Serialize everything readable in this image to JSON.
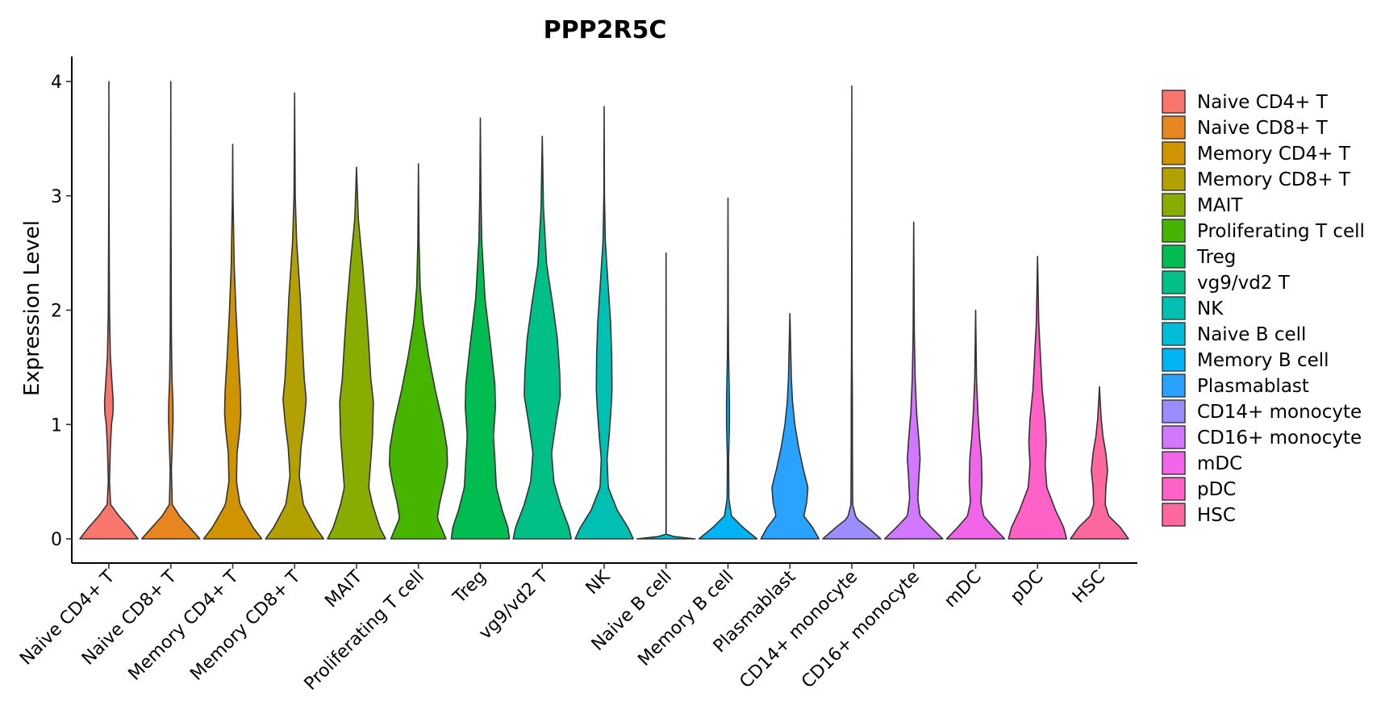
{
  "chart_data": {
    "type": "violin",
    "title": "PPP2R5C",
    "xlabel": "",
    "ylabel": "Expression Level",
    "ylim": [
      -0.2,
      4.2
    ],
    "yticks": [
      0,
      1,
      2,
      3,
      4
    ],
    "grid": false,
    "legend_position": "right",
    "categories": [
      "Naive CD4+ T",
      "Naive CD8+ T",
      "Memory CD4+ T",
      "Memory CD8+ T",
      "MAIT",
      "Proliferating T cell",
      "Treg",
      "vg9/vd2 T",
      "NK",
      "Naive B cell",
      "Memory B cell",
      "Plasmablast",
      "CD14+ monocyte",
      "CD16+ monocyte",
      "mDC",
      "pDC",
      "HSC"
    ],
    "colors": [
      "#F8766D",
      "#E7851E",
      "#D09400",
      "#B2A100",
      "#89AC00",
      "#45B500",
      "#00BC51",
      "#00C087",
      "#00C0B2",
      "#00BCD6",
      "#00B3F2",
      "#29A3FF",
      "#9C8DFF",
      "#D277FF",
      "#F166E8",
      "#FF61C7",
      "#FF689E"
    ],
    "violins": [
      {
        "name": "Naive CD4+ T",
        "max": 4.0,
        "profile": [
          [
            0,
            1.0
          ],
          [
            0.1,
            0.7
          ],
          [
            0.2,
            0.35
          ],
          [
            0.3,
            0.06
          ],
          [
            0.5,
            0.02
          ],
          [
            0.8,
            0.05
          ],
          [
            1.0,
            0.09
          ],
          [
            1.1,
            0.14
          ],
          [
            1.2,
            0.15
          ],
          [
            1.35,
            0.11
          ],
          [
            1.6,
            0.05
          ],
          [
            2.0,
            0.02
          ],
          [
            3.0,
            0.004
          ],
          [
            4.0,
            0.0
          ]
        ]
      },
      {
        "name": "Naive CD8+ T",
        "max": 4.0,
        "profile": [
          [
            0,
            1.0
          ],
          [
            0.1,
            0.65
          ],
          [
            0.2,
            0.3
          ],
          [
            0.3,
            0.05
          ],
          [
            0.6,
            0.02
          ],
          [
            0.9,
            0.06
          ],
          [
            1.05,
            0.08
          ],
          [
            1.2,
            0.07
          ],
          [
            1.4,
            0.04
          ],
          [
            1.8,
            0.02
          ],
          [
            3.0,
            0.005
          ],
          [
            4.0,
            0.0
          ]
        ]
      },
      {
        "name": "Memory CD4+ T",
        "max": 3.45,
        "profile": [
          [
            0,
            1.0
          ],
          [
            0.1,
            0.7
          ],
          [
            0.3,
            0.25
          ],
          [
            0.5,
            0.13
          ],
          [
            0.75,
            0.15
          ],
          [
            0.95,
            0.24
          ],
          [
            1.1,
            0.28
          ],
          [
            1.3,
            0.26
          ],
          [
            1.6,
            0.19
          ],
          [
            2.0,
            0.11
          ],
          [
            2.4,
            0.05
          ],
          [
            3.0,
            0.01
          ],
          [
            3.45,
            0.0
          ]
        ]
      },
      {
        "name": "Memory CD8+ T",
        "max": 3.9,
        "profile": [
          [
            0,
            1.0
          ],
          [
            0.1,
            0.72
          ],
          [
            0.3,
            0.3
          ],
          [
            0.55,
            0.16
          ],
          [
            0.8,
            0.22
          ],
          [
            1.0,
            0.32
          ],
          [
            1.22,
            0.4
          ],
          [
            1.4,
            0.33
          ],
          [
            1.7,
            0.27
          ],
          [
            2.1,
            0.2
          ],
          [
            2.6,
            0.07
          ],
          [
            3.0,
            0.02
          ],
          [
            3.9,
            0.0
          ]
        ]
      },
      {
        "name": "MAIT",
        "max": 3.25,
        "profile": [
          [
            0,
            1.0
          ],
          [
            0.1,
            0.8
          ],
          [
            0.3,
            0.55
          ],
          [
            0.45,
            0.42
          ],
          [
            0.65,
            0.48
          ],
          [
            0.9,
            0.55
          ],
          [
            1.2,
            0.58
          ],
          [
            1.4,
            0.49
          ],
          [
            1.7,
            0.42
          ],
          [
            2.0,
            0.34
          ],
          [
            2.4,
            0.21
          ],
          [
            2.8,
            0.06
          ],
          [
            3.25,
            0.0
          ]
        ]
      },
      {
        "name": "Proliferating T cell",
        "max": 3.28,
        "profile": [
          [
            0,
            0.95
          ],
          [
            0.08,
            0.82
          ],
          [
            0.18,
            0.65
          ],
          [
            0.3,
            0.72
          ],
          [
            0.5,
            0.9
          ],
          [
            0.65,
            1.0
          ],
          [
            0.8,
            0.98
          ],
          [
            1.0,
            0.85
          ],
          [
            1.3,
            0.58
          ],
          [
            1.6,
            0.35
          ],
          [
            1.9,
            0.16
          ],
          [
            2.2,
            0.06
          ],
          [
            2.6,
            0.02
          ],
          [
            3.28,
            0.0
          ]
        ]
      },
      {
        "name": "Treg",
        "max": 3.68,
        "profile": [
          [
            0,
            1.0
          ],
          [
            0.1,
            0.95
          ],
          [
            0.25,
            0.75
          ],
          [
            0.45,
            0.55
          ],
          [
            0.7,
            0.5
          ],
          [
            0.9,
            0.45
          ],
          [
            1.15,
            0.52
          ],
          [
            1.35,
            0.5
          ],
          [
            1.7,
            0.35
          ],
          [
            2.1,
            0.16
          ],
          [
            2.6,
            0.05
          ],
          [
            3.0,
            0.02
          ],
          [
            3.68,
            0.0
          ]
        ]
      },
      {
        "name": "vg9/vd2 T",
        "max": 3.52,
        "profile": [
          [
            0,
            1.0
          ],
          [
            0.1,
            0.92
          ],
          [
            0.3,
            0.62
          ],
          [
            0.5,
            0.4
          ],
          [
            0.75,
            0.32
          ],
          [
            1.0,
            0.46
          ],
          [
            1.25,
            0.62
          ],
          [
            1.45,
            0.6
          ],
          [
            1.75,
            0.52
          ],
          [
            2.05,
            0.36
          ],
          [
            2.4,
            0.15
          ],
          [
            2.9,
            0.04
          ],
          [
            3.52,
            0.0
          ]
        ]
      },
      {
        "name": "NK",
        "max": 3.78,
        "profile": [
          [
            0,
            1.0
          ],
          [
            0.1,
            0.82
          ],
          [
            0.25,
            0.45
          ],
          [
            0.45,
            0.14
          ],
          [
            0.7,
            0.1
          ],
          [
            0.9,
            0.17
          ],
          [
            1.15,
            0.24
          ],
          [
            1.3,
            0.27
          ],
          [
            1.6,
            0.26
          ],
          [
            1.9,
            0.22
          ],
          [
            2.2,
            0.14
          ],
          [
            2.6,
            0.04
          ],
          [
            3.0,
            0.01
          ],
          [
            3.78,
            0.0
          ]
        ]
      },
      {
        "name": "Naive B cell",
        "max": 2.5,
        "profile": [
          [
            0,
            1.0
          ],
          [
            0.012,
            0.8
          ],
          [
            0.025,
            0.0
          ],
          [
            0.03,
            0.004
          ],
          [
            0.5,
            0.004
          ],
          [
            1.5,
            0.003
          ],
          [
            2.5,
            0.0
          ]
        ]
      },
      {
        "name": "Memory B cell",
        "max": 2.98,
        "profile": [
          [
            0,
            1.0
          ],
          [
            0.1,
            0.52
          ],
          [
            0.2,
            0.12
          ],
          [
            0.35,
            0.03
          ],
          [
            0.7,
            0.02
          ],
          [
            1.0,
            0.05
          ],
          [
            1.2,
            0.05
          ],
          [
            1.6,
            0.02
          ],
          [
            2.0,
            0.01
          ],
          [
            2.98,
            0.0
          ]
        ]
      },
      {
        "name": "Plasmablast",
        "max": 1.97,
        "profile": [
          [
            0,
            1.0
          ],
          [
            0.1,
            0.78
          ],
          [
            0.2,
            0.48
          ],
          [
            0.32,
            0.58
          ],
          [
            0.45,
            0.62
          ],
          [
            0.6,
            0.47
          ],
          [
            0.8,
            0.3
          ],
          [
            1.0,
            0.17
          ],
          [
            1.2,
            0.09
          ],
          [
            1.4,
            0.05
          ],
          [
            1.97,
            0.0
          ]
        ]
      },
      {
        "name": "CD14+ monocyte",
        "max": 3.96,
        "profile": [
          [
            0,
            1.0
          ],
          [
            0.1,
            0.55
          ],
          [
            0.18,
            0.15
          ],
          [
            0.3,
            0.03
          ],
          [
            0.8,
            0.02
          ],
          [
            1.2,
            0.02
          ],
          [
            1.6,
            0.01
          ],
          [
            2.5,
            0.005
          ],
          [
            3.96,
            0.0
          ]
        ]
      },
      {
        "name": "CD16+ monocyte",
        "max": 2.77,
        "profile": [
          [
            0,
            1.0
          ],
          [
            0.1,
            0.6
          ],
          [
            0.2,
            0.22
          ],
          [
            0.35,
            0.14
          ],
          [
            0.55,
            0.18
          ],
          [
            0.7,
            0.22
          ],
          [
            0.85,
            0.18
          ],
          [
            1.1,
            0.1
          ],
          [
            1.4,
            0.05
          ],
          [
            1.8,
            0.02
          ],
          [
            2.77,
            0.0
          ]
        ]
      },
      {
        "name": "mDC",
        "max": 2.0,
        "profile": [
          [
            0,
            1.0
          ],
          [
            0.1,
            0.62
          ],
          [
            0.2,
            0.28
          ],
          [
            0.32,
            0.18
          ],
          [
            0.5,
            0.22
          ],
          [
            0.7,
            0.2
          ],
          [
            0.9,
            0.13
          ],
          [
            1.1,
            0.08
          ],
          [
            1.4,
            0.03
          ],
          [
            2.0,
            0.0
          ]
        ]
      },
      {
        "name": "pDC",
        "max": 2.47,
        "profile": [
          [
            0,
            1.0
          ],
          [
            0.1,
            0.9
          ],
          [
            0.25,
            0.62
          ],
          [
            0.45,
            0.32
          ],
          [
            0.65,
            0.26
          ],
          [
            0.85,
            0.3
          ],
          [
            1.05,
            0.26
          ],
          [
            1.3,
            0.16
          ],
          [
            1.6,
            0.1
          ],
          [
            1.9,
            0.04
          ],
          [
            2.47,
            0.0
          ]
        ]
      },
      {
        "name": "HSC",
        "max": 1.33,
        "profile": [
          [
            0,
            1.0
          ],
          [
            0.1,
            0.72
          ],
          [
            0.2,
            0.32
          ],
          [
            0.3,
            0.2
          ],
          [
            0.45,
            0.22
          ],
          [
            0.6,
            0.28
          ],
          [
            0.75,
            0.22
          ],
          [
            0.9,
            0.12
          ],
          [
            1.05,
            0.06
          ],
          [
            1.33,
            0.0
          ]
        ]
      }
    ]
  }
}
